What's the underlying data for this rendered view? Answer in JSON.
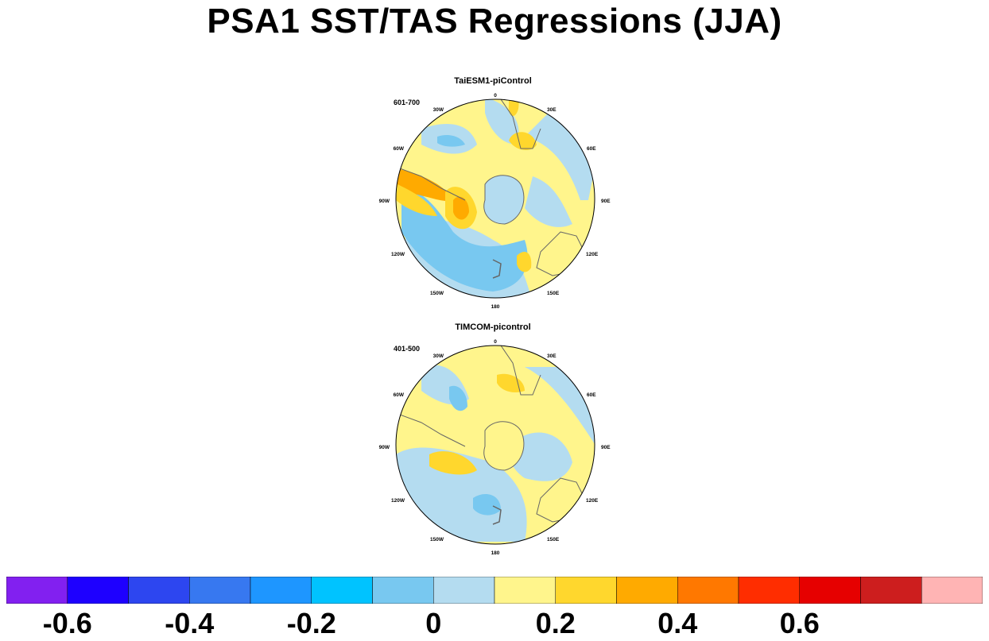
{
  "figure": {
    "title": "PSA1 SST/TAS Regressions (JJA)"
  },
  "panels": [
    {
      "name": "TaiESM1-piControl",
      "period": "601-700",
      "lon_labels": [
        "0",
        "30E",
        "60E",
        "90E",
        "120E",
        "150E",
        "180",
        "150W",
        "120W",
        "90W",
        "60W",
        "30W"
      ]
    },
    {
      "name": "TIMCOM-picontrol",
      "period": "401-500",
      "lon_labels": [
        "0",
        "30E",
        "60E",
        "90E",
        "120E",
        "150E",
        "180",
        "150W",
        "120W",
        "90W",
        "60W",
        "30W"
      ]
    }
  ],
  "colorbar": {
    "colors": [
      "#8220f0",
      "#1e00ff",
      "#2d46f0",
      "#3778f0",
      "#1e96ff",
      "#00c3ff",
      "#78c8f0",
      "#b4dcf0",
      "#fff58c",
      "#ffd72d",
      "#ffaa00",
      "#ff7800",
      "#ff2d00",
      "#e60000",
      "#cd1e1e",
      "#ffb4b4"
    ],
    "labels": [
      "-0.6",
      "-0.4",
      "-0.2",
      "0",
      "0.2",
      "0.4",
      "0.6"
    ]
  }
}
